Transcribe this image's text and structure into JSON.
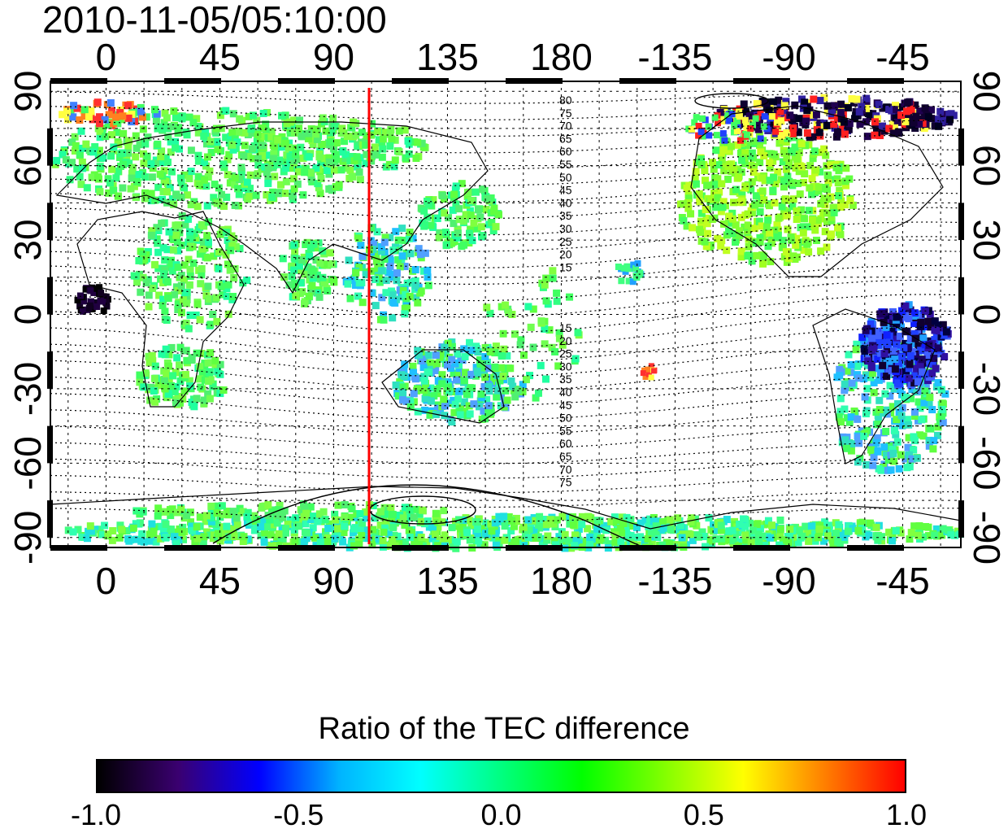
{
  "title": "2010-11-05/05:10:00",
  "map": {
    "lon_labels": [
      "0",
      "45",
      "90",
      "135",
      "180",
      "-135",
      "-90",
      "-45"
    ],
    "lon_values": [
      0,
      45,
      90,
      135,
      180,
      225,
      270,
      315
    ],
    "lat_labels": [
      "90",
      "60",
      "30",
      "0",
      "-30",
      "-60",
      "-90"
    ],
    "lat_values": [
      90,
      60,
      30,
      0,
      -30,
      -60,
      -90
    ],
    "lon_range": [
      -22,
      338
    ],
    "lat_range": [
      -94,
      94
    ],
    "marker_line_lon": 104,
    "marker_line_color": "#ff0000",
    "contour_labels_north": [
      "80",
      "75",
      "70",
      "65",
      "60",
      "55",
      "50",
      "45",
      "40",
      "35",
      "30",
      "25",
      "20",
      "15"
    ],
    "contour_labels_south": [
      "15",
      "20",
      "25",
      "30",
      "35",
      "40",
      "45",
      "50",
      "55",
      "60",
      "65",
      "70",
      "75"
    ]
  },
  "colorbar": {
    "title": "Ratio of the TEC difference",
    "ticks": [
      "-1.0",
      "-0.5",
      "0.0",
      "0.5",
      "1.0"
    ],
    "colors": [
      "#000000",
      "#3a0070",
      "#0000ff",
      "#00b4ff",
      "#00ffff",
      "#00ff80",
      "#00ff00",
      "#80ff00",
      "#ffff00",
      "#ff8000",
      "#ff0000"
    ]
  }
}
